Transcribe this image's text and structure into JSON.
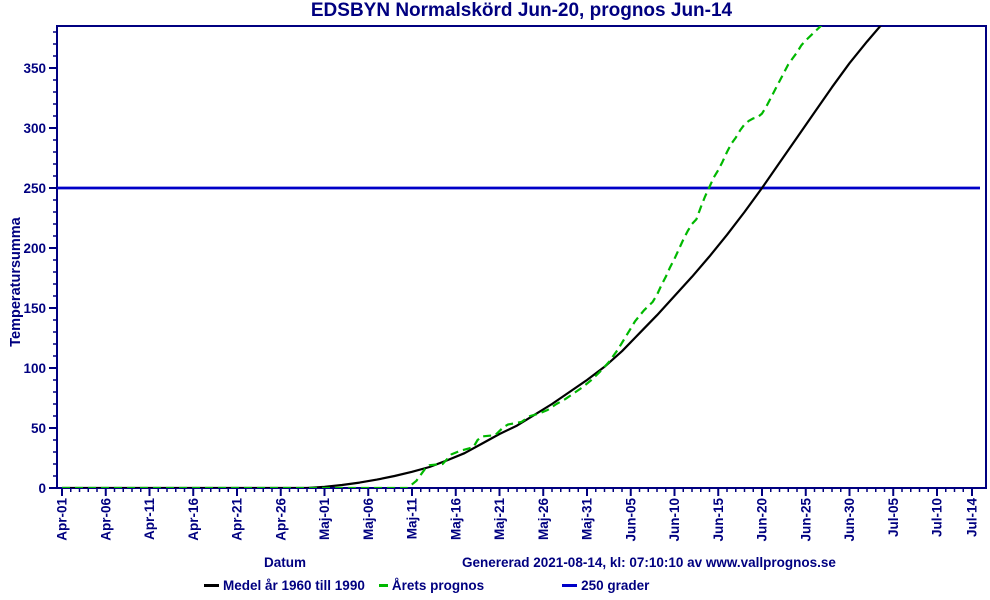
{
  "title": "EDSBYN Normalskörd Jun-20, prognos Jun-14",
  "colors": {
    "text": "#000080",
    "axis": "#000080",
    "background": "#ffffff",
    "reference_line": "#0000c8",
    "medel_line": "#000000",
    "prognos_line": "#00b800"
  },
  "footer": {
    "x_axis_title": "Datum",
    "generated": "Genererad 2021-08-14, kl: 07:10:10 av www.vallprognos.se"
  },
  "legend": [
    {
      "label": "Medel år 1960 till 1990",
      "color": "#000000",
      "style": "solid"
    },
    {
      "label": "Årets prognos",
      "color": "#00b800",
      "style": "dashed"
    },
    {
      "label": "250 grader",
      "color": "#0000c8",
      "style": "solid"
    }
  ],
  "chart_data": {
    "type": "line",
    "title": "EDSBYN Normalskörd Jun-20, prognos Jun-14",
    "xlabel": "Datum",
    "ylabel": "Temperatursumma",
    "x_unit": "days since Apr-01",
    "x_tick_labels": [
      "Apr-01",
      "Apr-06",
      "Apr-11",
      "Apr-16",
      "Apr-21",
      "Apr-26",
      "Maj-01",
      "Maj-06",
      "Maj-11",
      "Maj-16",
      "Maj-21",
      "Maj-26",
      "Maj-31",
      "Jun-05",
      "Jun-10",
      "Jun-15",
      "Jun-20",
      "Jun-25",
      "Jun-30",
      "Jul-05",
      "Jul-10",
      "Jul-14"
    ],
    "x_tick_days": [
      0,
      5,
      10,
      15,
      20,
      25,
      30,
      35,
      40,
      45,
      50,
      55,
      60,
      65,
      70,
      75,
      80,
      85,
      90,
      95,
      100,
      104
    ],
    "x_minor_step_days": 1,
    "xlim_days": [
      0,
      104
    ],
    "ylim": [
      0,
      385
    ],
    "yticks": [
      0,
      50,
      100,
      150,
      200,
      250,
      300,
      350
    ],
    "y_minor_step": 10,
    "grid": false,
    "legend_position": "bottom",
    "reference_line": {
      "value": 250,
      "label": "250 grader",
      "color": "#0000c8"
    },
    "series": [
      {
        "name": "Medel år 1960 till 1990",
        "color": "#000000",
        "style": "solid",
        "points": [
          [
            0,
            0
          ],
          [
            8,
            0
          ],
          [
            16,
            0
          ],
          [
            24,
            0
          ],
          [
            28,
            0
          ],
          [
            30,
            1
          ],
          [
            32,
            2.5
          ],
          [
            34,
            4.5
          ],
          [
            36,
            7
          ],
          [
            38,
            10
          ],
          [
            40,
            13.5
          ],
          [
            42,
            17.5
          ],
          [
            44,
            23
          ],
          [
            46,
            29
          ],
          [
            48,
            37
          ],
          [
            50,
            45
          ],
          [
            52,
            52
          ],
          [
            54,
            61
          ],
          [
            56,
            70
          ],
          [
            58,
            80
          ],
          [
            60,
            90
          ],
          [
            62,
            101
          ],
          [
            64,
            114
          ],
          [
            66,
            129
          ],
          [
            68,
            144
          ],
          [
            70,
            160
          ],
          [
            72,
            176
          ],
          [
            74,
            193
          ],
          [
            76,
            211
          ],
          [
            78,
            230
          ],
          [
            80,
            250
          ],
          [
            82,
            271
          ],
          [
            84,
            292
          ],
          [
            86,
            313
          ],
          [
            88,
            334
          ],
          [
            90,
            354
          ],
          [
            92,
            372
          ],
          [
            94,
            389
          ],
          [
            95,
            397
          ]
        ]
      },
      {
        "name": "Årets prognos",
        "color": "#00b800",
        "style": "dashed",
        "points": [
          [
            0,
            0
          ],
          [
            8,
            0
          ],
          [
            16,
            0
          ],
          [
            24,
            0
          ],
          [
            32,
            0
          ],
          [
            38,
            0
          ],
          [
            39.5,
            0
          ],
          [
            40.5,
            6
          ],
          [
            41.5,
            16
          ],
          [
            42,
            19
          ],
          [
            43.5,
            20
          ],
          [
            44,
            24
          ],
          [
            44.5,
            28
          ],
          [
            45.5,
            31
          ],
          [
            46.5,
            33
          ],
          [
            47,
            34
          ],
          [
            47.5,
            40
          ],
          [
            48,
            43
          ],
          [
            49.5,
            44
          ],
          [
            50.5,
            51
          ],
          [
            51,
            53
          ],
          [
            52.5,
            55
          ],
          [
            53.5,
            60
          ],
          [
            54.5,
            62
          ],
          [
            55.5,
            65
          ],
          [
            56.5,
            70
          ],
          [
            57.5,
            74
          ],
          [
            58.5,
            79
          ],
          [
            59.5,
            84
          ],
          [
            60.5,
            90
          ],
          [
            61.5,
            97
          ],
          [
            62.5,
            105
          ],
          [
            63.5,
            115
          ],
          [
            64.5,
            127
          ],
          [
            65.5,
            139
          ],
          [
            66.5,
            148
          ],
          [
            67.5,
            155
          ],
          [
            68,
            161
          ],
          [
            68.5,
            169
          ],
          [
            69,
            176
          ],
          [
            69.5,
            184
          ],
          [
            70,
            191
          ],
          [
            70.5,
            199
          ],
          [
            71,
            207
          ],
          [
            71.5,
            214
          ],
          [
            72,
            220
          ],
          [
            72.5,
            224
          ],
          [
            73,
            234
          ],
          [
            73.5,
            243
          ],
          [
            74,
            251
          ],
          [
            74.5,
            259
          ],
          [
            75,
            265
          ],
          [
            75.5,
            272
          ],
          [
            76,
            280
          ],
          [
            76.5,
            287
          ],
          [
            77,
            292
          ],
          [
            77.5,
            298
          ],
          [
            78,
            303
          ],
          [
            78.5,
            306
          ],
          [
            79,
            308
          ],
          [
            79.5,
            309
          ],
          [
            80,
            312
          ],
          [
            80.5,
            318
          ],
          [
            81,
            325
          ],
          [
            81.5,
            332
          ],
          [
            82,
            339
          ],
          [
            82.5,
            346
          ],
          [
            83,
            353
          ],
          [
            83.5,
            358
          ],
          [
            84,
            363
          ],
          [
            84.5,
            369
          ],
          [
            85,
            373
          ],
          [
            86,
            380
          ],
          [
            87,
            387
          ],
          [
            88,
            394
          ]
        ]
      }
    ]
  }
}
